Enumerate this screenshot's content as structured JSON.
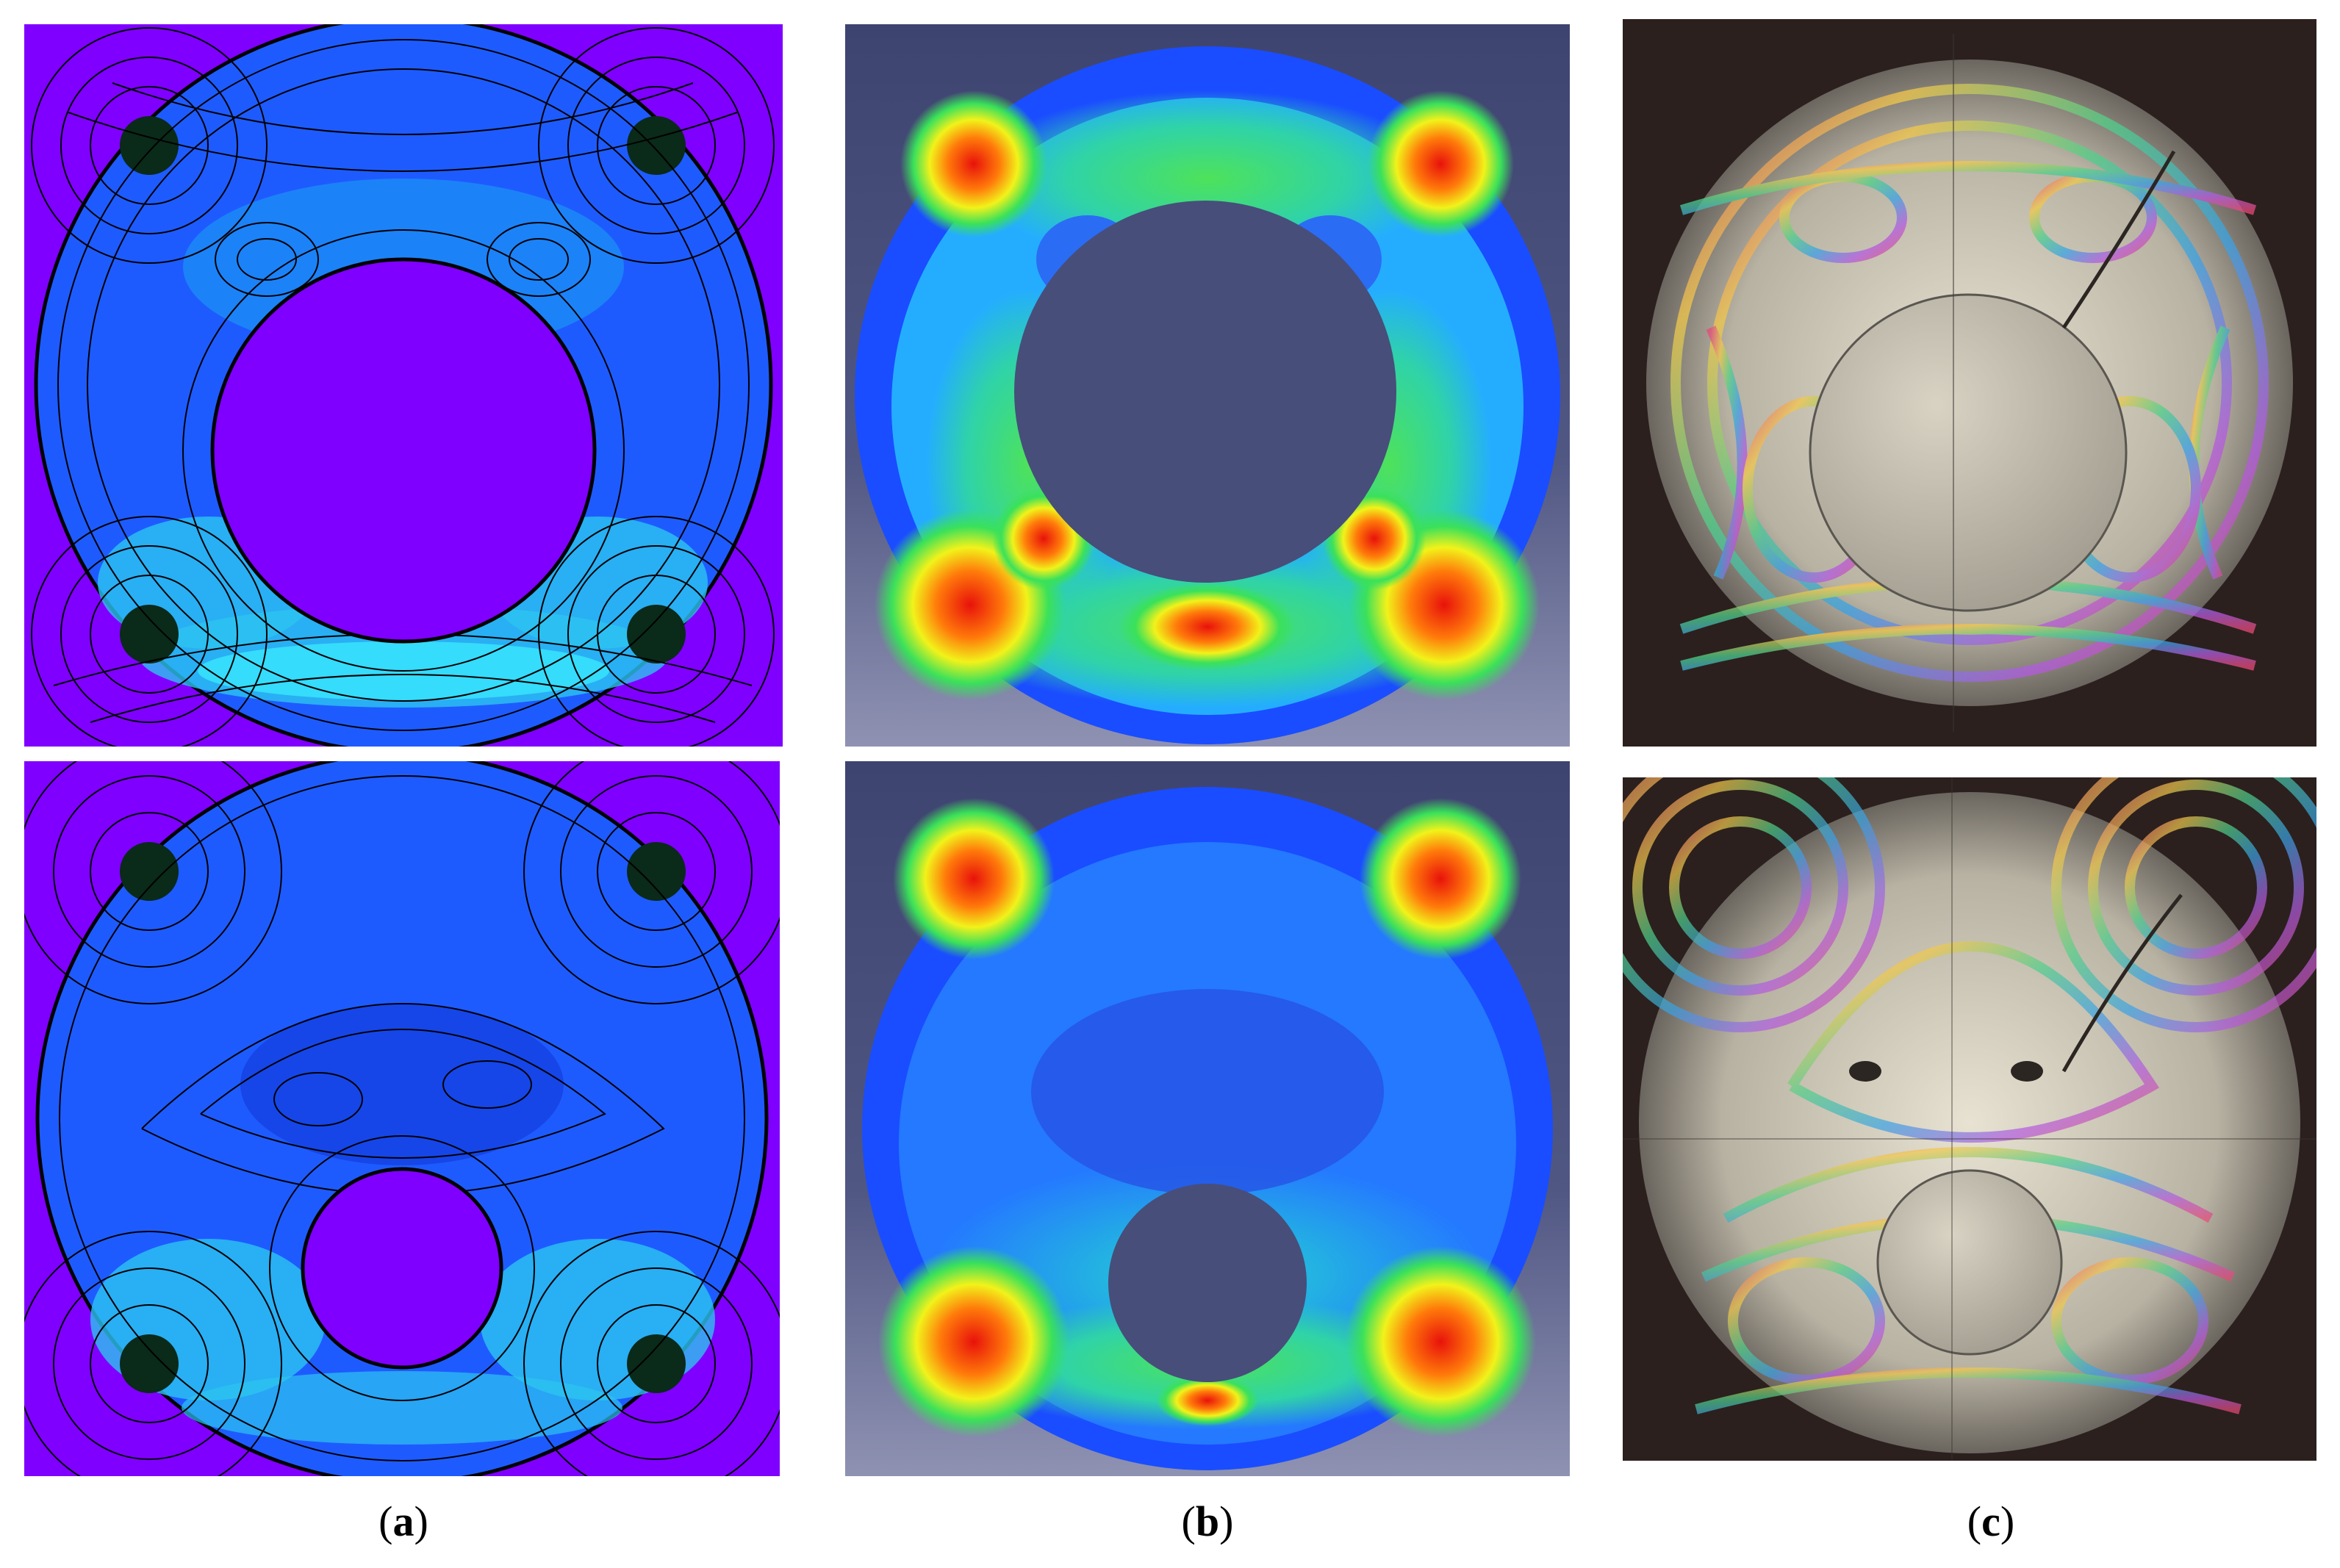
{
  "figure": {
    "captions": [
      {
        "open": "(",
        "letter": "a",
        "close": ")"
      },
      {
        "open": "(",
        "letter": "b",
        "close": ")"
      },
      {
        "open": "(",
        "letter": "c",
        "close": ")"
      }
    ],
    "columns": [
      {
        "method": "contour-plot",
        "colors": {
          "background": "#7f00ff",
          "body": "#1e5bff",
          "high": "#3af0ff",
          "line": "#000000"
        }
      },
      {
        "method": "finite-element",
        "colors": {
          "background": "#474e7a",
          "body": "#1a4dff",
          "hot": "#e8120b",
          "mid": "#35e35a"
        }
      },
      {
        "method": "photoelastic-photo",
        "colors": {
          "background": "#2b201d",
          "disc": "#b9b4a7",
          "hole": "#c9c3b5"
        }
      }
    ]
  }
}
